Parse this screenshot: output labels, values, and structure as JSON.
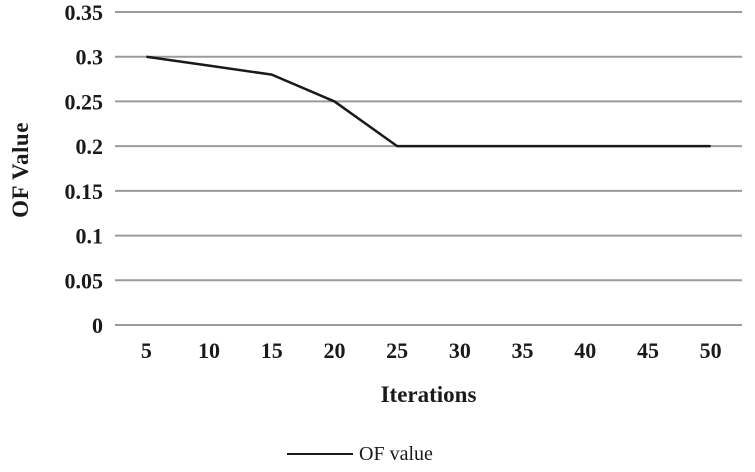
{
  "chart_data": {
    "type": "line",
    "x": [
      5,
      10,
      15,
      20,
      25,
      30,
      35,
      40,
      45,
      50
    ],
    "series": [
      {
        "name": "OF value",
        "values": [
          0.3,
          0.29,
          0.28,
          0.25,
          0.2,
          0.2,
          0.2,
          0.2,
          0.2,
          0.2
        ],
        "color": "#1a1a1a"
      }
    ],
    "title": "",
    "xlabel": "Iterations",
    "ylabel": "OF Value",
    "ylim": [
      0,
      0.35
    ],
    "ytick_step": 0.05,
    "ytick_labels": [
      "0",
      "0.05",
      "0.1",
      "0.15",
      "0.2",
      "0.25",
      "0.3",
      "0.35"
    ],
    "xtick_labels": [
      "5",
      "10",
      "15",
      "20",
      "25",
      "30",
      "35",
      "40",
      "45",
      "50"
    ],
    "grid": "horizontal",
    "gridline_color": "#9b9b9b",
    "legend_position": "bottom",
    "legend_entries": [
      {
        "label": "OF value",
        "marker": "line",
        "color": "#1a1a1a"
      }
    ]
  }
}
